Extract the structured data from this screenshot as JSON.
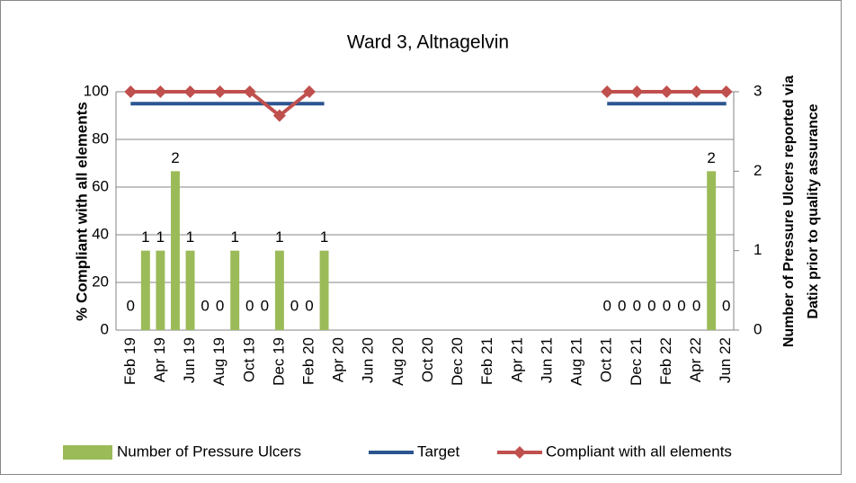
{
  "chart_data": {
    "type": "bar",
    "title": "Ward 3, Altnagelvin",
    "y_label": "% Compliant with all elements",
    "y2_label": [
      "Number of Pressure Ulcers reported via",
      "Datix prior to quality assurance"
    ],
    "categories": [
      "Feb 19",
      null,
      "Apr 19",
      null,
      "Jun 19",
      null,
      "Aug 19",
      null,
      "Oct 19",
      null,
      "Dec 19",
      null,
      "Feb 20",
      null,
      "Apr 20",
      null,
      "Jun 20",
      null,
      "Aug 20",
      null,
      "Oct 20",
      null,
      "Dec 20",
      null,
      "Feb 21",
      null,
      "Apr 21",
      null,
      "Jun 21",
      null,
      "Aug 21",
      null,
      "Oct 21",
      null,
      "Dec 21",
      null,
      "Feb 22",
      null,
      "Apr 22",
      null,
      "Jun 22"
    ],
    "series": [
      {
        "name": "Number of Pressure Ulcers",
        "type": "bar",
        "axis": "y2",
        "color": "#9bbb59",
        "data_labels": true,
        "values": [
          0,
          1,
          1,
          2,
          1,
          0,
          0,
          1,
          0,
          0,
          1,
          0,
          0,
          1,
          null,
          null,
          null,
          null,
          null,
          null,
          null,
          null,
          null,
          null,
          null,
          null,
          null,
          null,
          null,
          null,
          null,
          null,
          0,
          0,
          0,
          0,
          0,
          0,
          0,
          2,
          0
        ]
      },
      {
        "name": "Target",
        "type": "line",
        "color": "#2c5590",
        "values": [
          95,
          95,
          95,
          95,
          95,
          95,
          95,
          95,
          95,
          95,
          95,
          95,
          95,
          95,
          null,
          null,
          null,
          null,
          null,
          null,
          null,
          null,
          null,
          null,
          null,
          null,
          null,
          null,
          null,
          null,
          null,
          null,
          95,
          95,
          95,
          95,
          95,
          95,
          95,
          95,
          95
        ]
      },
      {
        "name": "Compliant with all elements",
        "type": "line",
        "marker": "diamond",
        "color": "#c0504d",
        "values": [
          100,
          null,
          100,
          null,
          100,
          null,
          100,
          null,
          100,
          null,
          90,
          null,
          100,
          null,
          null,
          null,
          null,
          null,
          null,
          null,
          null,
          null,
          null,
          null,
          null,
          null,
          null,
          null,
          null,
          null,
          null,
          null,
          100,
          null,
          100,
          null,
          100,
          null,
          100,
          null,
          100
        ]
      }
    ],
    "ylim": [
      0,
      100
    ],
    "yticks": [
      0,
      20,
      40,
      60,
      80,
      100
    ],
    "y2lim": [
      0,
      3
    ],
    "y2ticks": [
      0,
      1,
      2,
      3
    ],
    "grid": true,
    "legend": "bottom"
  }
}
